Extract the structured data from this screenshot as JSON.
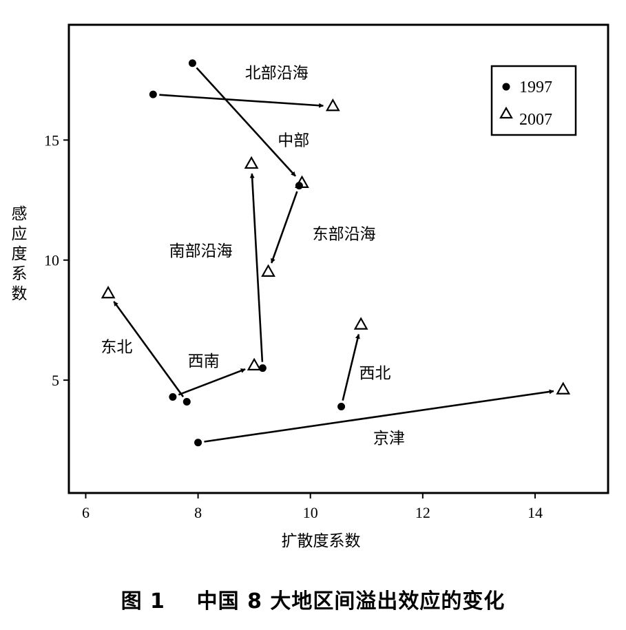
{
  "chart_data": {
    "type": "scatter",
    "caption": "图 1    中国 8 大地区间溢出效应的变化",
    "xlabel": "扩散度系数",
    "ylabel": "感应度系数",
    "xlim": [
      5.7,
      15.3
    ],
    "ylim": [
      0.3,
      19.8
    ],
    "xticks": [
      6,
      8,
      10,
      12,
      14
    ],
    "yticks": [
      5,
      10,
      15
    ],
    "grid": false,
    "legend_position": "top-right",
    "legend": [
      {
        "label": "1997",
        "marker": "filled-circle"
      },
      {
        "label": "2007",
        "marker": "open-triangle"
      }
    ],
    "regions": [
      {
        "name": "北部沿海",
        "from": [
          7.2,
          16.9
        ],
        "to": [
          10.4,
          16.4
        ],
        "label_at": [
          9.4,
          17.8
        ]
      },
      {
        "name": "中部",
        "from": [
          7.9,
          18.2
        ],
        "to": [
          9.85,
          13.2
        ],
        "label_at": [
          9.7,
          15.0
        ]
      },
      {
        "name": "东部沿海",
        "from": [
          9.8,
          13.1
        ],
        "to": [
          9.25,
          9.5
        ],
        "label_at": [
          10.6,
          11.1
        ]
      },
      {
        "name": "南部沿海",
        "from": [
          9.15,
          5.5
        ],
        "to": [
          8.95,
          14.0
        ],
        "label_at": [
          8.05,
          10.4
        ]
      },
      {
        "name": "东北",
        "from": [
          7.8,
          4.1
        ],
        "to": [
          6.4,
          8.6
        ],
        "label_at": [
          6.55,
          6.4
        ]
      },
      {
        "name": "西南",
        "from": [
          7.55,
          4.3
        ],
        "to": [
          9.0,
          5.6
        ],
        "label_at": [
          8.1,
          5.8
        ]
      },
      {
        "name": "西北",
        "from": [
          10.55,
          3.9
        ],
        "to": [
          10.9,
          7.3
        ],
        "label_at": [
          11.15,
          5.3
        ]
      },
      {
        "name": "京津",
        "from": [
          8.0,
          2.4
        ],
        "to": [
          14.5,
          4.6
        ],
        "label_at": [
          11.4,
          2.6
        ]
      }
    ]
  },
  "colors": {
    "ink": "#000000",
    "background": "#ffffff"
  }
}
